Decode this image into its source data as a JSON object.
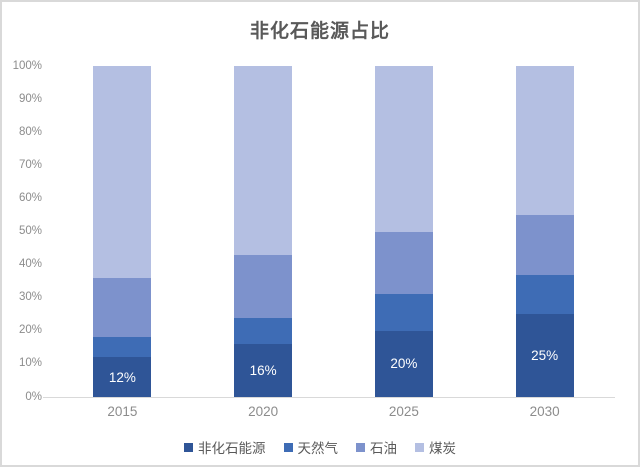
{
  "chart_data": {
    "type": "bar",
    "subtype": "stacked-100",
    "title": "非化石能源占比",
    "categories": [
      "2015",
      "2020",
      "2025",
      "2030"
    ],
    "series": [
      {
        "name": "非化石能源",
        "color": "#2F5597",
        "values": [
          12,
          16,
          20,
          25
        ],
        "data_labels": [
          "12%",
          "16%",
          "20%",
          "25%"
        ]
      },
      {
        "name": "天然气",
        "color": "#3E6CB5",
        "values": [
          6,
          8,
          11,
          12
        ]
      },
      {
        "name": "石油",
        "color": "#7D92CC",
        "values": [
          18,
          19,
          19,
          18
        ]
      },
      {
        "name": "煤炭",
        "color": "#B4BFE2",
        "values": [
          64,
          57,
          50,
          45
        ]
      }
    ],
    "y_ticks": [
      "0%",
      "10%",
      "20%",
      "30%",
      "40%",
      "50%",
      "60%",
      "70%",
      "80%",
      "90%",
      "100%"
    ],
    "ylim": [
      0,
      100
    ],
    "grid": false,
    "legend_position": "bottom",
    "data_label_color": "#FFFFFF",
    "axis_line_color": "#D9D9D9",
    "title_color": "#595959",
    "tick_label_color": "#8C8C8C"
  }
}
